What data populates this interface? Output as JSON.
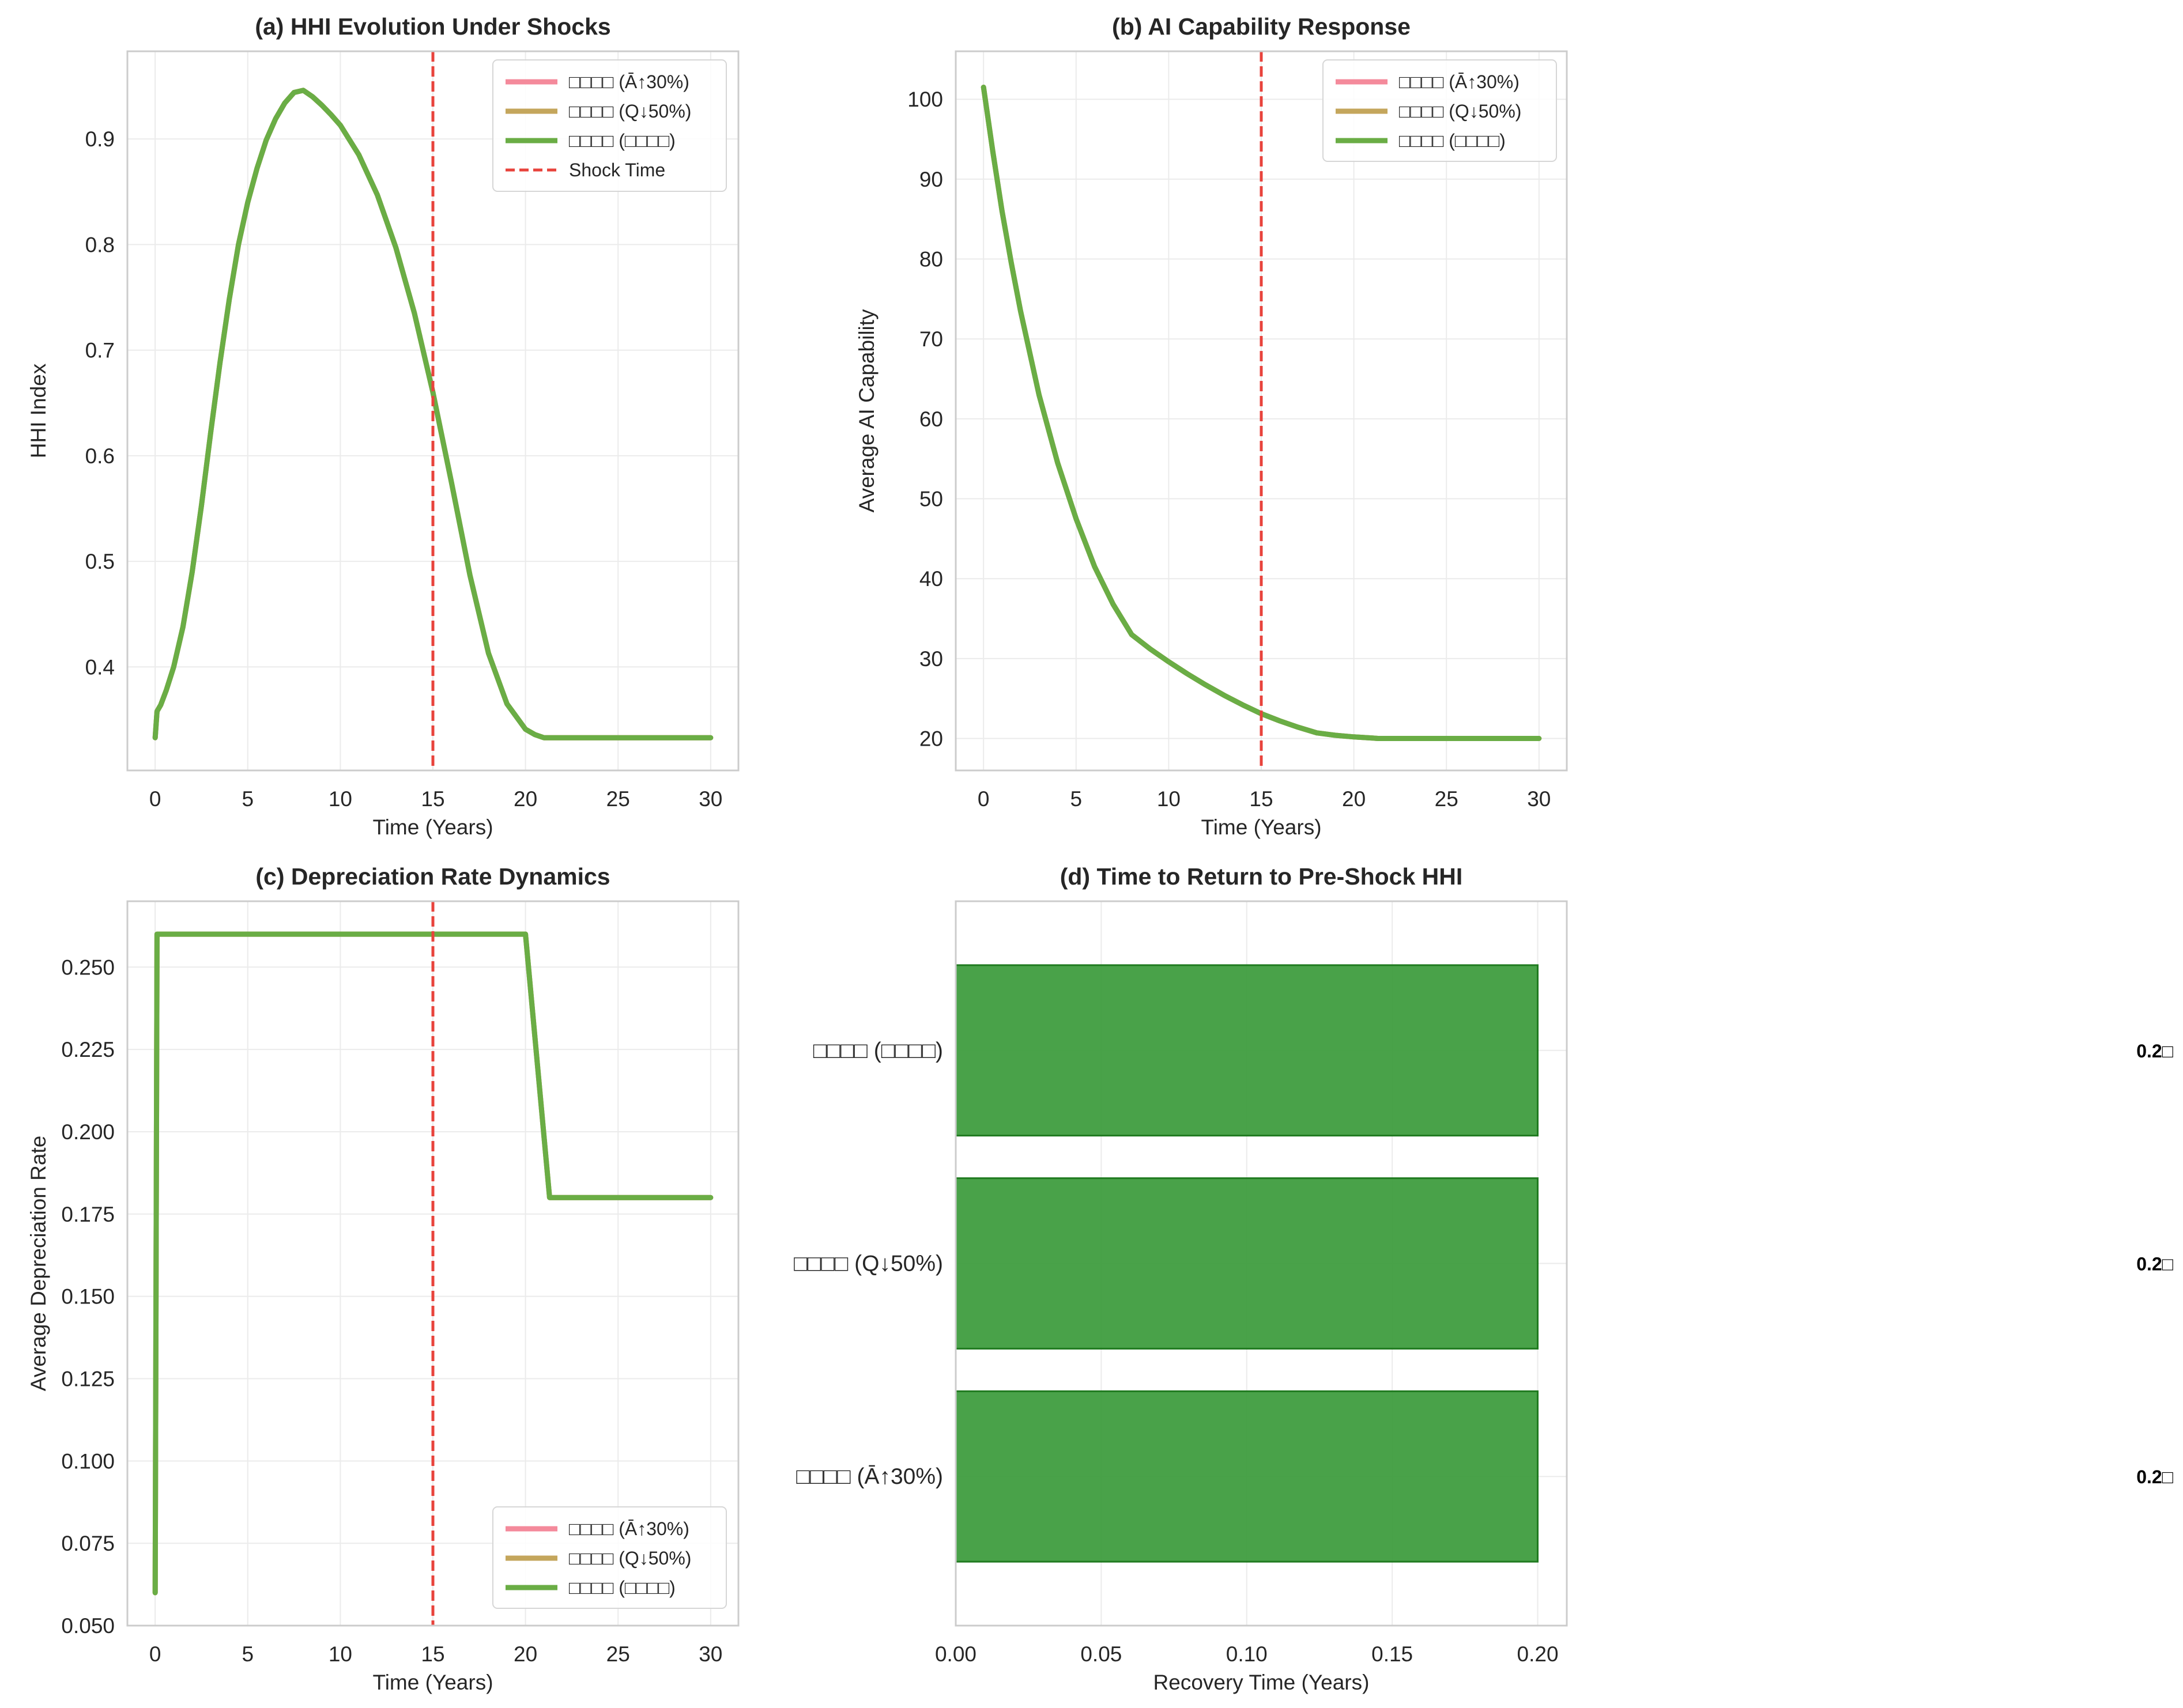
{
  "figure": {
    "colors": {
      "shock_a": "#f48a9b",
      "shock_q": "#c4a65c",
      "shock_combined": "#6aad45",
      "shock_line": "#e8433c",
      "bar_fill": "#3a9a3a",
      "bar_edge": "#1f7a1f"
    }
  },
  "chart_data": [
    {
      "id": "a",
      "type": "line",
      "title": "(a) HHI Evolution Under Shocks",
      "xlabel": "Time (Years)",
      "ylabel": "HHI Index",
      "xlim": [
        -1.5,
        31.5
      ],
      "ylim": [
        0.302,
        0.983
      ],
      "xticks": [
        0,
        5,
        10,
        15,
        20,
        25,
        30
      ],
      "yticks": [
        0.4,
        0.5,
        0.6,
        0.7,
        0.8,
        0.9
      ],
      "ytick_labels": [
        "0.4",
        "0.5",
        "0.6",
        "0.7",
        "0.8",
        "0.9"
      ],
      "grid": true,
      "legend_position": "top-right",
      "shock_time": 15,
      "shock_label": "Shock Time",
      "series": [
        {
          "name": "□□□□ (Ā↑30%)",
          "color_key": "shock_a",
          "x": [
            0,
            0.1,
            0.3,
            0.6,
            1,
            1.5,
            2,
            2.5,
            3,
            3.5,
            4,
            4.5,
            5,
            5.5,
            6,
            6.5,
            7,
            7.5,
            8,
            8.5,
            9,
            9.5,
            10,
            11,
            12,
            13,
            14,
            15,
            16,
            17,
            18,
            19,
            20,
            20.5,
            21,
            22,
            23,
            24,
            25,
            26,
            27,
            28,
            29,
            30
          ],
          "y": [
            0.333,
            0.358,
            0.364,
            0.378,
            0.4,
            0.438,
            0.49,
            0.553,
            0.622,
            0.688,
            0.748,
            0.8,
            0.84,
            0.872,
            0.899,
            0.919,
            0.934,
            0.944,
            0.946,
            0.94,
            0.932,
            0.923,
            0.913,
            0.885,
            0.847,
            0.797,
            0.735,
            0.66,
            0.575,
            0.487,
            0.413,
            0.365,
            0.341,
            0.336,
            0.333,
            0.333,
            0.333,
            0.333,
            0.333,
            0.333,
            0.333,
            0.333,
            0.333,
            0.333
          ]
        },
        {
          "name": "□□□□ (Q↓50%)",
          "color_key": "shock_q",
          "x": [
            0,
            0.1,
            0.3,
            0.6,
            1,
            1.5,
            2,
            2.5,
            3,
            3.5,
            4,
            4.5,
            5,
            5.5,
            6,
            6.5,
            7,
            7.5,
            8,
            8.5,
            9,
            9.5,
            10,
            11,
            12,
            13,
            14,
            15,
            16,
            17,
            18,
            19,
            20,
            20.5,
            21,
            22,
            23,
            24,
            25,
            26,
            27,
            28,
            29,
            30
          ],
          "y": [
            0.333,
            0.358,
            0.364,
            0.378,
            0.4,
            0.438,
            0.49,
            0.553,
            0.622,
            0.688,
            0.748,
            0.8,
            0.84,
            0.872,
            0.899,
            0.919,
            0.934,
            0.944,
            0.946,
            0.94,
            0.932,
            0.923,
            0.913,
            0.885,
            0.847,
            0.797,
            0.735,
            0.66,
            0.575,
            0.487,
            0.413,
            0.365,
            0.341,
            0.336,
            0.333,
            0.333,
            0.333,
            0.333,
            0.333,
            0.333,
            0.333,
            0.333,
            0.333,
            0.333
          ]
        },
        {
          "name": "□□□□ (□□□□)",
          "color_key": "shock_combined",
          "x": [
            0,
            0.1,
            0.3,
            0.6,
            1,
            1.5,
            2,
            2.5,
            3,
            3.5,
            4,
            4.5,
            5,
            5.5,
            6,
            6.5,
            7,
            7.5,
            8,
            8.5,
            9,
            9.5,
            10,
            11,
            12,
            13,
            14,
            15,
            16,
            17,
            18,
            19,
            20,
            20.5,
            21,
            22,
            23,
            24,
            25,
            26,
            27,
            28,
            29,
            30
          ],
          "y": [
            0.333,
            0.358,
            0.364,
            0.378,
            0.4,
            0.438,
            0.49,
            0.553,
            0.622,
            0.688,
            0.748,
            0.8,
            0.84,
            0.872,
            0.899,
            0.919,
            0.934,
            0.944,
            0.946,
            0.94,
            0.932,
            0.923,
            0.913,
            0.885,
            0.847,
            0.797,
            0.735,
            0.66,
            0.575,
            0.487,
            0.413,
            0.365,
            0.341,
            0.336,
            0.333,
            0.333,
            0.333,
            0.333,
            0.333,
            0.333,
            0.333,
            0.333,
            0.333,
            0.333
          ]
        }
      ]
    },
    {
      "id": "b",
      "type": "line",
      "title": "(b) AI Capability Response",
      "xlabel": "Time (Years)",
      "ylabel": "Average AI Capability",
      "xlim": [
        -1.5,
        31.5
      ],
      "ylim": [
        16,
        106
      ],
      "xticks": [
        0,
        5,
        10,
        15,
        20,
        25,
        30
      ],
      "yticks": [
        20,
        30,
        40,
        50,
        60,
        70,
        80,
        90,
        100
      ],
      "ytick_labels": [
        "20",
        "30",
        "40",
        "50",
        "60",
        "70",
        "80",
        "90",
        "100"
      ],
      "grid": true,
      "legend_position": "top-right",
      "shock_time": 15,
      "series": [
        {
          "name": "□□□□ (Ā↑30%)",
          "color_key": "shock_a",
          "x": [
            0,
            0.5,
            1,
            1.5,
            2,
            3,
            4,
            5,
            6,
            7,
            8,
            9,
            10,
            11,
            12,
            13,
            14,
            15,
            16,
            17,
            18,
            19,
            20,
            21,
            21.3,
            22,
            25,
            30
          ],
          "y": [
            101.5,
            93.5,
            86,
            79.5,
            73.5,
            63,
            54.5,
            47.5,
            41.5,
            36.8,
            33,
            31.2,
            29.6,
            28.1,
            26.7,
            25.4,
            24.2,
            23.1,
            22.2,
            21.4,
            20.7,
            20.4,
            20.2,
            20.05,
            20,
            20,
            20,
            20
          ]
        },
        {
          "name": "□□□□ (Q↓50%)",
          "color_key": "shock_q",
          "x": [
            0,
            0.5,
            1,
            1.5,
            2,
            3,
            4,
            5,
            6,
            7,
            8,
            9,
            10,
            11,
            12,
            13,
            14,
            15,
            16,
            17,
            18,
            19,
            20,
            21,
            21.3,
            22,
            25,
            30
          ],
          "y": [
            101.5,
            93.5,
            86,
            79.5,
            73.5,
            63,
            54.5,
            47.5,
            41.5,
            36.8,
            33,
            31.2,
            29.6,
            28.1,
            26.7,
            25.4,
            24.2,
            23.1,
            22.2,
            21.4,
            20.7,
            20.4,
            20.2,
            20.05,
            20,
            20,
            20,
            20
          ]
        },
        {
          "name": "□□□□ (□□□□)",
          "color_key": "shock_combined",
          "x": [
            0,
            0.5,
            1,
            1.5,
            2,
            3,
            4,
            5,
            6,
            7,
            8,
            9,
            10,
            11,
            12,
            13,
            14,
            15,
            16,
            17,
            18,
            19,
            20,
            21,
            21.3,
            22,
            25,
            30
          ],
          "y": [
            101.5,
            93.5,
            86,
            79.5,
            73.5,
            63,
            54.5,
            47.5,
            41.5,
            36.8,
            33,
            31.2,
            29.6,
            28.1,
            26.7,
            25.4,
            24.2,
            23.1,
            22.2,
            21.4,
            20.7,
            20.4,
            20.2,
            20.05,
            20,
            20,
            20,
            20
          ]
        }
      ]
    },
    {
      "id": "c",
      "type": "line",
      "title": "(c) Depreciation Rate Dynamics",
      "xlabel": "Time (Years)",
      "ylabel": "Average Depreciation Rate",
      "xlim": [
        -1.5,
        31.5
      ],
      "ylim": [
        0.05,
        0.27
      ],
      "xticks": [
        0,
        5,
        10,
        15,
        20,
        25,
        30
      ],
      "yticks": [
        0.05,
        0.075,
        0.1,
        0.125,
        0.15,
        0.175,
        0.2,
        0.225,
        0.25
      ],
      "ytick_labels": [
        "0.050",
        "0.075",
        "0.100",
        "0.125",
        "0.150",
        "0.175",
        "0.200",
        "0.225",
        "0.250"
      ],
      "grid": true,
      "legend_position": "bottom-right",
      "shock_time": 15,
      "series": [
        {
          "name": "□□□□ (Ā↑30%)",
          "color_key": "shock_a",
          "x": [
            0,
            0.1,
            5,
            10,
            15,
            20,
            21.3,
            25,
            30
          ],
          "y": [
            0.06,
            0.26,
            0.26,
            0.26,
            0.26,
            0.26,
            0.18,
            0.18,
            0.18
          ]
        },
        {
          "name": "□□□□ (Q↓50%)",
          "color_key": "shock_q",
          "x": [
            0,
            0.1,
            5,
            10,
            15,
            20,
            21.3,
            25,
            30
          ],
          "y": [
            0.06,
            0.26,
            0.26,
            0.26,
            0.26,
            0.26,
            0.18,
            0.18,
            0.18
          ]
        },
        {
          "name": "□□□□ (□□□□)",
          "color_key": "shock_combined",
          "x": [
            0,
            0.1,
            5,
            10,
            15,
            20,
            21.3,
            25,
            30
          ],
          "y": [
            0.06,
            0.26,
            0.26,
            0.26,
            0.26,
            0.26,
            0.18,
            0.18,
            0.18
          ]
        }
      ]
    },
    {
      "id": "d",
      "type": "bar",
      "orientation": "horizontal",
      "title": "(d) Time to Return to Pre-Shock HHI",
      "xlabel": "Recovery Time (Years)",
      "ylabel": "",
      "xlim": [
        0,
        0.21
      ],
      "xticks": [
        0,
        0.05,
        0.1,
        0.15,
        0.2
      ],
      "xtick_labels": [
        "0.00",
        "0.05",
        "0.10",
        "0.15",
        "0.20"
      ],
      "grid": true,
      "categories": [
        "□□□□ (Ā↑30%)",
        "□□□□ (Q↓50%)",
        "□□□□ (□□□□)"
      ],
      "values": [
        0.2,
        0.2,
        0.2
      ],
      "value_labels": [
        "0.2□",
        "0.2□",
        "0.2□"
      ]
    }
  ]
}
